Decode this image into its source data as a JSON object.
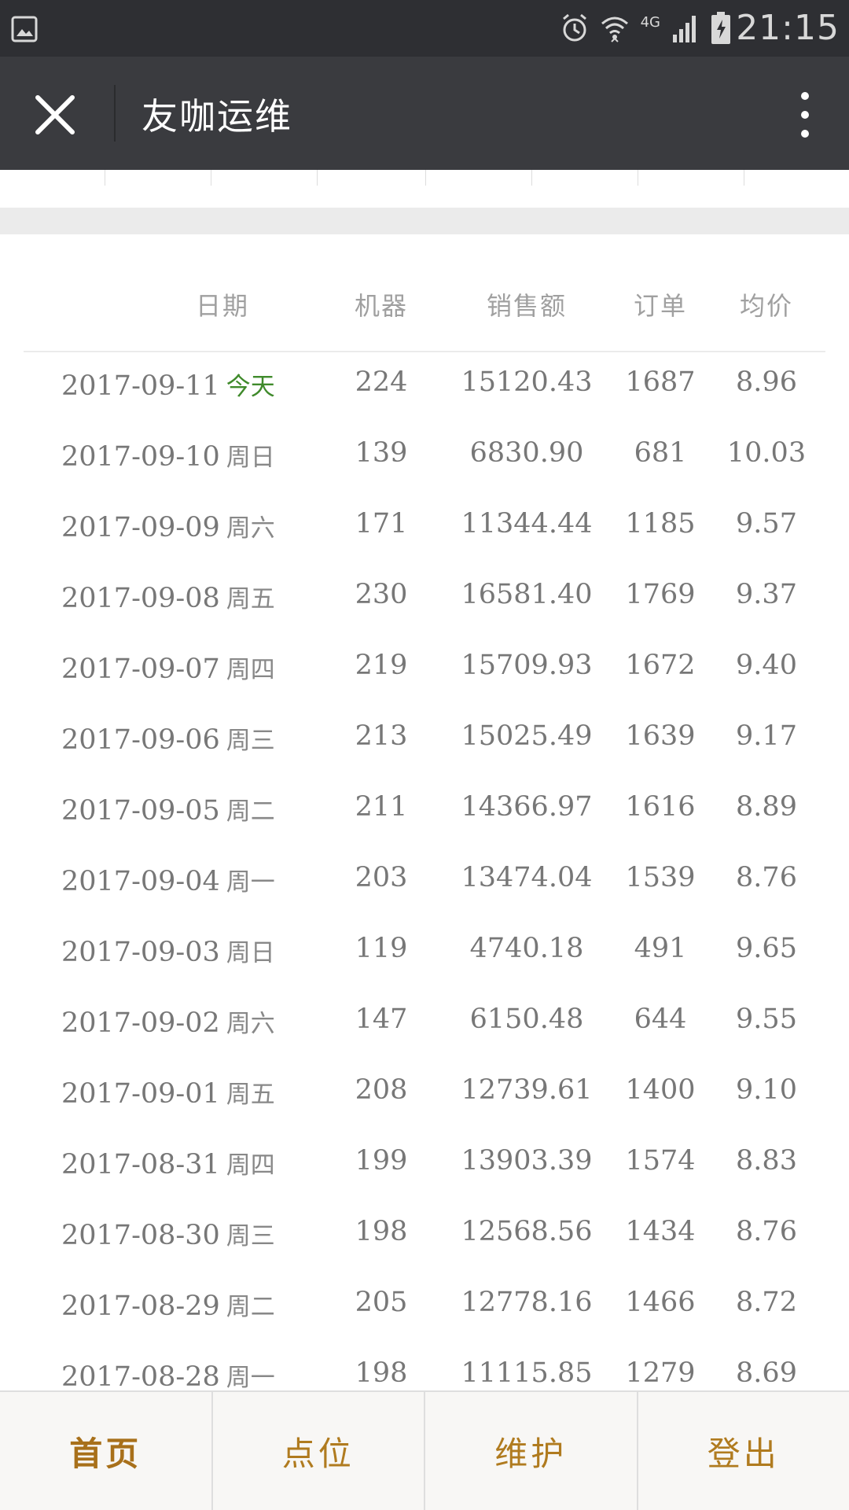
{
  "status_bar": {
    "time": "21:15",
    "network": "4G",
    "icons": [
      "gallery-icon",
      "alarm-icon",
      "wifi-icon",
      "signal-icon",
      "battery-charging-icon"
    ]
  },
  "app_bar": {
    "title": "友咖运维",
    "close_icon": "close-icon",
    "more_icon": "more-vertical-icon"
  },
  "table": {
    "headers": {
      "date": "日期",
      "machine": "机器",
      "sales": "销售额",
      "orders": "订单",
      "avg": "均价"
    },
    "rows": [
      {
        "date": "2017-09-11",
        "weekday": "今天",
        "machine": "224",
        "sales": "15120.43",
        "orders": "1687",
        "avg": "8.96",
        "today": true
      },
      {
        "date": "2017-09-10",
        "weekday": "周日",
        "machine": "139",
        "sales": "6830.90",
        "orders": "681",
        "avg": "10.03"
      },
      {
        "date": "2017-09-09",
        "weekday": "周六",
        "machine": "171",
        "sales": "11344.44",
        "orders": "1185",
        "avg": "9.57"
      },
      {
        "date": "2017-09-08",
        "weekday": "周五",
        "machine": "230",
        "sales": "16581.40",
        "orders": "1769",
        "avg": "9.37"
      },
      {
        "date": "2017-09-07",
        "weekday": "周四",
        "machine": "219",
        "sales": "15709.93",
        "orders": "1672",
        "avg": "9.40"
      },
      {
        "date": "2017-09-06",
        "weekday": "周三",
        "machine": "213",
        "sales": "15025.49",
        "orders": "1639",
        "avg": "9.17"
      },
      {
        "date": "2017-09-05",
        "weekday": "周二",
        "machine": "211",
        "sales": "14366.97",
        "orders": "1616",
        "avg": "8.89"
      },
      {
        "date": "2017-09-04",
        "weekday": "周一",
        "machine": "203",
        "sales": "13474.04",
        "orders": "1539",
        "avg": "8.76"
      },
      {
        "date": "2017-09-03",
        "weekday": "周日",
        "machine": "119",
        "sales": "4740.18",
        "orders": "491",
        "avg": "9.65"
      },
      {
        "date": "2017-09-02",
        "weekday": "周六",
        "machine": "147",
        "sales": "6150.48",
        "orders": "644",
        "avg": "9.55"
      },
      {
        "date": "2017-09-01",
        "weekday": "周五",
        "machine": "208",
        "sales": "12739.61",
        "orders": "1400",
        "avg": "9.10"
      },
      {
        "date": "2017-08-31",
        "weekday": "周四",
        "machine": "199",
        "sales": "13903.39",
        "orders": "1574",
        "avg": "8.83"
      },
      {
        "date": "2017-08-30",
        "weekday": "周三",
        "machine": "198",
        "sales": "12568.56",
        "orders": "1434",
        "avg": "8.76"
      },
      {
        "date": "2017-08-29",
        "weekday": "周二",
        "machine": "205",
        "sales": "12778.16",
        "orders": "1466",
        "avg": "8.72"
      },
      {
        "date": "2017-08-28",
        "weekday": "周一",
        "machine": "198",
        "sales": "11115.85",
        "orders": "1279",
        "avg": "8.69"
      }
    ]
  },
  "tab_bar": {
    "tabs": [
      {
        "label": "首页",
        "active": true
      },
      {
        "label": "点位",
        "active": false
      },
      {
        "label": "维护",
        "active": false
      },
      {
        "label": "登出",
        "active": false
      }
    ]
  },
  "colors": {
    "status_bar_bg": "#2e2f33",
    "app_bar_bg": "#3a3b3f",
    "today_green": "#3f8a2b",
    "tab_text": "#b07b1f",
    "tab_bar_bg": "#f8f7f5"
  }
}
